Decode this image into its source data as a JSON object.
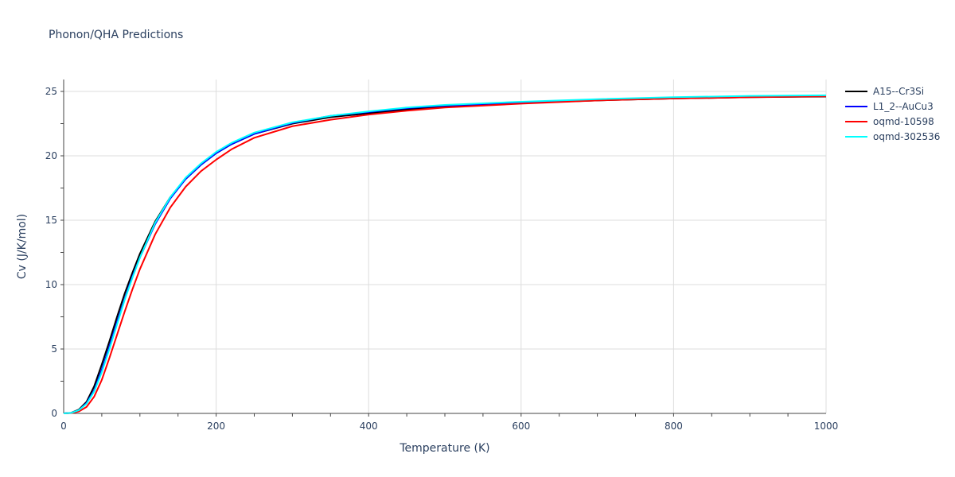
{
  "chart_data": {
    "type": "line",
    "title": "Phonon/QHA Predictions",
    "xlabel": "Temperature (K)",
    "ylabel": "Cv (J/K/mol)",
    "xlim": [
      0,
      1000
    ],
    "ylim": [
      0,
      26
    ],
    "xticks": [
      0,
      200,
      400,
      600,
      800,
      1000
    ],
    "yticks": [
      0,
      5,
      10,
      15,
      20,
      25
    ],
    "grid": true,
    "legend_position": "top-right",
    "series": [
      {
        "name": "A15--Cr3Si",
        "color": "#000000",
        "x": [
          0,
          10,
          20,
          30,
          40,
          50,
          60,
          70,
          80,
          90,
          100,
          120,
          140,
          160,
          180,
          200,
          220,
          250,
          300,
          350,
          400,
          450,
          500,
          600,
          700,
          800,
          900,
          1000
        ],
        "y": [
          0,
          0.05,
          0.3,
          0.9,
          2.1,
          3.8,
          5.6,
          7.5,
          9.3,
          10.9,
          12.4,
          14.9,
          16.8,
          18.2,
          19.3,
          20.2,
          20.9,
          21.7,
          22.5,
          23.0,
          23.3,
          23.6,
          23.8,
          24.1,
          24.3,
          24.45,
          24.55,
          24.6
        ]
      },
      {
        "name": "L1_2--AuCu3",
        "color": "#0000ff",
        "x": [
          0,
          10,
          20,
          30,
          40,
          50,
          60,
          70,
          80,
          90,
          100,
          120,
          140,
          160,
          180,
          200,
          220,
          250,
          300,
          350,
          400,
          450,
          500,
          600,
          700,
          800,
          900,
          1000
        ],
        "y": [
          0,
          0.04,
          0.25,
          0.8,
          1.8,
          3.4,
          5.2,
          7.1,
          8.9,
          10.6,
          12.1,
          14.7,
          16.7,
          18.2,
          19.3,
          20.2,
          20.9,
          21.7,
          22.55,
          23.1,
          23.4,
          23.7,
          23.9,
          24.15,
          24.35,
          24.5,
          24.6,
          24.65
        ]
      },
      {
        "name": "oqmd-10598",
        "color": "#ff0000",
        "x": [
          0,
          10,
          20,
          30,
          40,
          50,
          60,
          70,
          80,
          90,
          100,
          120,
          140,
          160,
          180,
          200,
          220,
          250,
          300,
          350,
          400,
          450,
          500,
          600,
          700,
          800,
          900,
          1000
        ],
        "y": [
          0,
          0.02,
          0.15,
          0.5,
          1.3,
          2.6,
          4.3,
          6.1,
          7.9,
          9.6,
          11.2,
          13.9,
          16.0,
          17.6,
          18.8,
          19.7,
          20.5,
          21.4,
          22.3,
          22.8,
          23.2,
          23.5,
          23.75,
          24.05,
          24.3,
          24.45,
          24.55,
          24.62
        ]
      },
      {
        "name": "oqmd-302536",
        "color": "#00ffff",
        "x": [
          0,
          10,
          20,
          30,
          40,
          50,
          60,
          70,
          80,
          90,
          100,
          120,
          140,
          160,
          180,
          200,
          220,
          250,
          300,
          350,
          400,
          450,
          500,
          600,
          700,
          800,
          900,
          1000
        ],
        "y": [
          0,
          0.04,
          0.25,
          0.75,
          1.7,
          3.2,
          5.0,
          6.9,
          8.8,
          10.5,
          12.1,
          14.8,
          16.8,
          18.3,
          19.4,
          20.3,
          21.0,
          21.8,
          22.6,
          23.1,
          23.45,
          23.75,
          23.95,
          24.2,
          24.4,
          24.55,
          24.65,
          24.7
        ]
      }
    ]
  }
}
